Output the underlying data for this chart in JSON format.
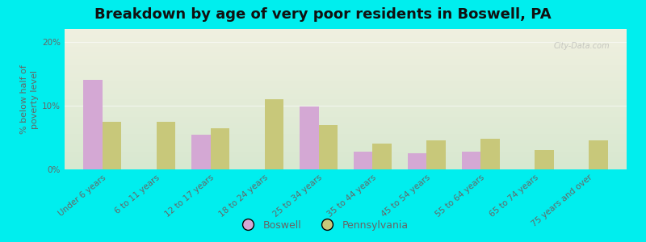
{
  "title": "Breakdown by age of very poor residents in Boswell, PA",
  "ylabel": "% below half of\npoverty level",
  "categories": [
    "Under 6 years",
    "6 to 11 years",
    "12 to 17 years",
    "18 to 24 years",
    "25 to 34 years",
    "35 to 44 years",
    "45 to 54 years",
    "55 to 64 years",
    "65 to 74 years",
    "75 years and over"
  ],
  "boswell": [
    14.0,
    0.0,
    5.5,
    0.0,
    9.8,
    2.8,
    2.5,
    2.8,
    0.0,
    0.0
  ],
  "pennsylvania": [
    7.5,
    7.5,
    6.5,
    11.0,
    7.0,
    4.0,
    4.5,
    4.8,
    3.0,
    4.5
  ],
  "boswell_color": "#d4a8d4",
  "pennsylvania_color": "#c8c87a",
  "background_color": "#00eeee",
  "plot_bg_top": "#f0f0e0",
  "plot_bg_bottom": "#d8e8d0",
  "ylim": [
    0,
    22
  ],
  "yticks": [
    0,
    10,
    20
  ],
  "ytick_labels": [
    "0%",
    "10%",
    "20%"
  ],
  "bar_width": 0.35,
  "title_fontsize": 13,
  "axis_label_fontsize": 8,
  "tick_fontsize": 7.5,
  "legend_fontsize": 9,
  "label_color": "#666666",
  "title_color": "#111111"
}
